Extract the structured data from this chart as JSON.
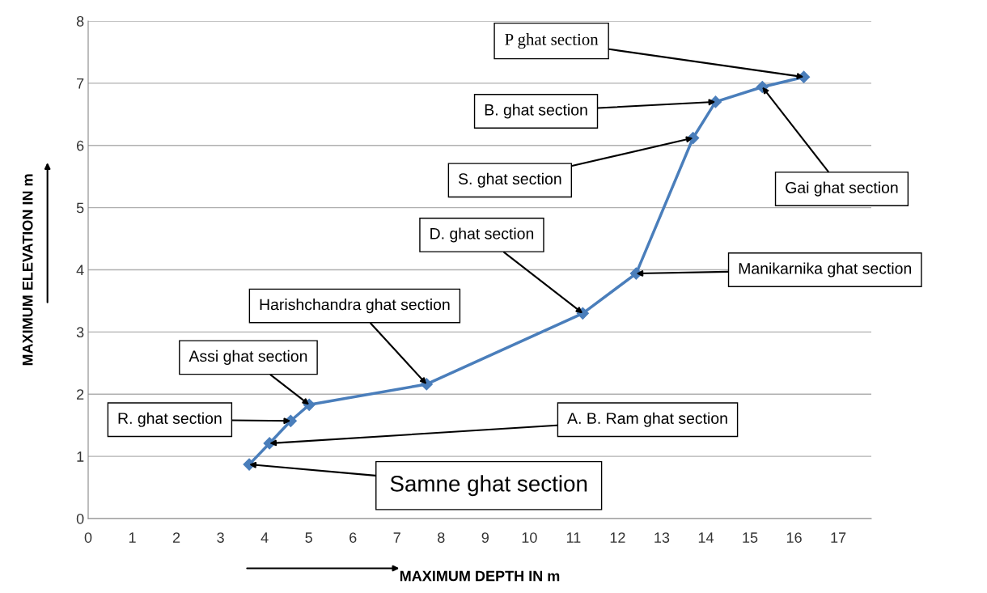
{
  "chart_data": {
    "type": "line",
    "xlabel": "MAXIMUM DEPTH IN m",
    "ylabel": "MAXIMUM ELEVATION IN m",
    "x": [
      3.65,
      4.11,
      4.59,
      5.01,
      7.67,
      11.21,
      12.42,
      13.71,
      14.22,
      15.28,
      16.22
    ],
    "series": [
      {
        "color": "#4a7ebb",
        "values": [
          0.87,
          1.21,
          1.57,
          1.83,
          2.16,
          3.3,
          3.94,
          6.12,
          6.7,
          6.94,
          7.1
        ]
      }
    ],
    "xlim": [
      0,
      17.75
    ],
    "xticks": [
      0,
      1,
      2,
      3,
      4,
      5,
      6,
      7,
      8,
      9,
      10,
      11,
      12,
      13,
      14,
      15,
      16,
      17
    ],
    "ylim": [
      0,
      8
    ],
    "yticks": [
      0,
      1,
      2,
      3,
      4,
      5,
      6,
      7,
      8
    ],
    "grid": "y",
    "marker": "diamond",
    "line_style": "solid",
    "annotations": [
      {
        "text": "P ghat section",
        "x": 16.22,
        "y": 7.1
      },
      {
        "text": "B. ghat section",
        "x": 14.22,
        "y": 6.7
      },
      {
        "text": "S. ghat section",
        "x": 13.71,
        "y": 6.12
      },
      {
        "text": "Gai ghat section",
        "x": 15.28,
        "y": 6.94
      },
      {
        "text": "D. ghat section",
        "x": 11.21,
        "y": 3.3
      },
      {
        "text": "Manikarnika ghat section",
        "x": 12.42,
        "y": 3.94
      },
      {
        "text": "Harishchandra ghat section",
        "x": 7.67,
        "y": 2.16
      },
      {
        "text": "Assi ghat section",
        "x": 5.01,
        "y": 1.83
      },
      {
        "text": "R. ghat section",
        "x": 4.59,
        "y": 1.57
      },
      {
        "text": "A. B. Ram ghat section",
        "x": 4.11,
        "y": 1.21
      },
      {
        "text": "Samne ghat section",
        "x": 3.65,
        "y": 0.87
      }
    ]
  }
}
